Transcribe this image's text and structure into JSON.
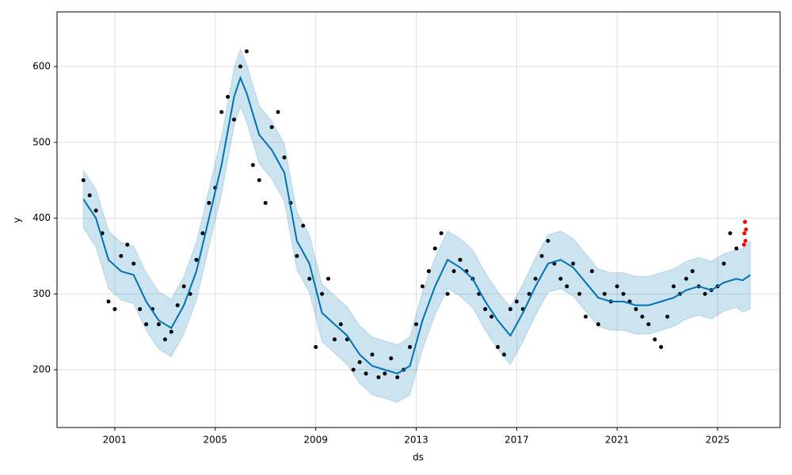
{
  "chart_data": {
    "type": "forecast",
    "xlabel": "ds",
    "ylabel": "y",
    "xlim": [
      1998.7,
      2027.49
    ],
    "ylim": [
      123.8,
      672.1
    ],
    "xticks": [
      2001,
      2005,
      2009,
      2013,
      2017,
      2021,
      2025
    ],
    "yticks": [
      200,
      300,
      400,
      500,
      600
    ],
    "grid": true,
    "forecast": {
      "color": "#0072B2",
      "band_color": "#0072B2",
      "x": [
        1999.75,
        2000.25,
        2000.75,
        2001.25,
        2001.75,
        2002.25,
        2002.75,
        2003.25,
        2003.75,
        2004.25,
        2004.75,
        2005.25,
        2005.75,
        2006.0,
        2006.25,
        2006.75,
        2007.25,
        2007.75,
        2008.25,
        2008.75,
        2009.25,
        2009.75,
        2010.25,
        2010.75,
        2011.25,
        2011.75,
        2012.25,
        2012.75,
        2013.25,
        2013.75,
        2014.25,
        2014.75,
        2015.25,
        2015.75,
        2016.25,
        2016.75,
        2017.25,
        2017.75,
        2018.25,
        2018.75,
        2019.25,
        2019.75,
        2020.25,
        2020.75,
        2021.25,
        2021.75,
        2022.25,
        2022.75,
        2023.25,
        2023.75,
        2024.25,
        2024.75,
        2025.25,
        2025.75,
        2026.0,
        2026.3
      ],
      "values": [
        425,
        400,
        345,
        330,
        325,
        290,
        265,
        255,
        285,
        330,
        400,
        470,
        560,
        585,
        565,
        510,
        490,
        460,
        370,
        340,
        275,
        260,
        245,
        220,
        205,
        200,
        195,
        205,
        265,
        310,
        345,
        335,
        320,
        290,
        265,
        245,
        275,
        310,
        340,
        345,
        335,
        315,
        295,
        290,
        290,
        285,
        285,
        290,
        295,
        305,
        310,
        305,
        315,
        320,
        318,
        325
      ],
      "upper": [
        463,
        438,
        383,
        368,
        363,
        328,
        303,
        293,
        323,
        368,
        438,
        508,
        598,
        623,
        603,
        548,
        528,
        498,
        408,
        378,
        313,
        298,
        283,
        258,
        243,
        238,
        233,
        243,
        303,
        348,
        383,
        373,
        358,
        328,
        303,
        283,
        313,
        348,
        378,
        383,
        373,
        353,
        333,
        328,
        328,
        323,
        323,
        328,
        333,
        343,
        348,
        343,
        353,
        358,
        360,
        370
      ],
      "lower": [
        387,
        362,
        307,
        292,
        287,
        252,
        227,
        217,
        247,
        292,
        362,
        432,
        522,
        547,
        527,
        472,
        452,
        422,
        332,
        302,
        237,
        222,
        207,
        182,
        167,
        162,
        157,
        167,
        227,
        272,
        307,
        297,
        282,
        252,
        227,
        207,
        237,
        272,
        302,
        307,
        297,
        277,
        257,
        252,
        252,
        247,
        247,
        252,
        257,
        267,
        272,
        267,
        277,
        282,
        276,
        280
      ]
    },
    "observed": {
      "color": "#000000",
      "x": [
        1999.75,
        2000.0,
        2000.25,
        2000.5,
        2000.75,
        2001.0,
        2001.25,
        2001.5,
        2001.75,
        2002.0,
        2002.25,
        2002.5,
        2002.75,
        2003.0,
        2003.25,
        2003.5,
        2003.75,
        2004.0,
        2004.25,
        2004.5,
        2004.75,
        2005.0,
        2005.25,
        2005.5,
        2005.75,
        2006.0,
        2006.25,
        2006.5,
        2006.75,
        2007.0,
        2007.25,
        2007.5,
        2007.75,
        2008.0,
        2008.25,
        2008.5,
        2008.75,
        2009.0,
        2009.25,
        2009.5,
        2009.75,
        2010.0,
        2010.25,
        2010.5,
        2010.75,
        2011.0,
        2011.25,
        2011.5,
        2011.75,
        2012.0,
        2012.25,
        2012.5,
        2012.75,
        2013.0,
        2013.25,
        2013.5,
        2013.75,
        2014.0,
        2014.25,
        2014.5,
        2014.75,
        2015.0,
        2015.25,
        2015.5,
        2015.75,
        2016.0,
        2016.25,
        2016.5,
        2016.75,
        2017.0,
        2017.25,
        2017.5,
        2017.75,
        2018.0,
        2018.25,
        2018.5,
        2018.75,
        2019.0,
        2019.25,
        2019.5,
        2019.75,
        2020.0,
        2020.25,
        2020.5,
        2020.75,
        2021.0,
        2021.25,
        2021.5,
        2021.75,
        2022.0,
        2022.25,
        2022.5,
        2022.75,
        2023.0,
        2023.25,
        2023.5,
        2023.75,
        2024.0,
        2024.25,
        2024.5,
        2024.75,
        2025.0,
        2025.25,
        2025.5,
        2025.75
      ],
      "values": [
        450,
        430,
        410,
        380,
        290,
        280,
        350,
        365,
        340,
        280,
        260,
        280,
        260,
        240,
        250,
        285,
        310,
        300,
        345,
        380,
        420,
        440,
        540,
        560,
        530,
        600,
        620,
        470,
        450,
        420,
        520,
        540,
        480,
        420,
        350,
        390,
        320,
        230,
        300,
        320,
        240,
        260,
        240,
        200,
        210,
        195,
        220,
        190,
        195,
        215,
        190,
        200,
        230,
        260,
        310,
        330,
        360,
        380,
        300,
        330,
        345,
        330,
        320,
        300,
        280,
        270,
        230,
        220,
        280,
        290,
        280,
        300,
        320,
        350,
        370,
        340,
        320,
        310,
        340,
        300,
        270,
        330,
        260,
        300,
        290,
        310,
        300,
        290,
        280,
        270,
        260,
        240,
        230,
        270,
        310,
        300,
        320,
        330,
        310,
        300,
        305,
        310,
        340,
        380,
        360
      ]
    },
    "future_observed": {
      "color": "#ff0000",
      "x": [
        2026.05,
        2026.07,
        2026.09,
        2026.11,
        2026.13
      ],
      "values": [
        365,
        380,
        395,
        370,
        385
      ]
    }
  }
}
